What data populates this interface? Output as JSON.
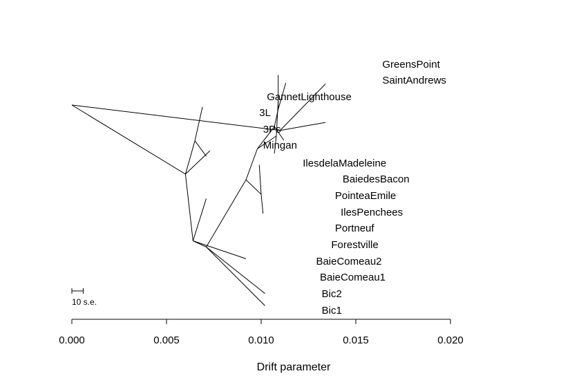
{
  "chart_data": {
    "type": "tree",
    "xlabel": "Drift parameter",
    "xlim": [
      0,
      0.02
    ],
    "x_ticks": [
      0.0,
      0.005,
      0.01,
      0.015,
      0.02
    ],
    "x_tick_labels": [
      "0.000",
      "0.005",
      "0.010",
      "0.015",
      "0.020"
    ],
    "scale_bar": {
      "label": "10 s.e.",
      "length": 0.0006
    },
    "nodes": [
      {
        "id": "root",
        "x": 0.0,
        "y": 0.0
      },
      {
        "id": "n_gs_sa",
        "x": 0.011,
        "y": 0.054
      },
      {
        "id": "n_a",
        "x": 0.006,
        "y": 0.147
      },
      {
        "id": "n_b",
        "x": 0.0064,
        "y": 0.289
      },
      {
        "id": "n_3l3ps",
        "x": 0.0065,
        "y": 0.076
      },
      {
        "id": "n_c",
        "x": 0.0071,
        "y": 0.302
      },
      {
        "id": "n_d",
        "x": 0.0092,
        "y": 0.159
      },
      {
        "id": "n_e",
        "x": 0.0098,
        "y": 0.093
      },
      {
        "id": "n_f",
        "x": 0.0107,
        "y": 0.046
      },
      {
        "id": "n_g",
        "x": 0.0109,
        "y": 0.009
      },
      {
        "id": "n_h",
        "x": 0.0108,
        "y": 0.066
      },
      {
        "id": "n_i",
        "x": 0.01,
        "y": 0.19
      }
    ],
    "edges": [
      [
        "root",
        "n_gs_sa"
      ],
      [
        "root",
        "n_a"
      ],
      [
        "n_a",
        "n_b"
      ],
      [
        "n_a",
        "n_3l3ps"
      ],
      [
        "n_b",
        "n_c"
      ],
      [
        "n_c",
        "n_d"
      ],
      [
        "n_d",
        "n_e"
      ],
      [
        "n_e",
        "n_f"
      ],
      [
        "n_f",
        "n_g"
      ],
      [
        "n_e",
        "n_h"
      ],
      [
        "n_d",
        "n_i"
      ]
    ],
    "leaves": [
      {
        "name": "GreensPoint",
        "parent": "n_gs_sa",
        "x": 0.0134,
        "y": -0.045,
        "label_x": 0.0164
      },
      {
        "name": "SaintAndrews",
        "parent": "n_gs_sa",
        "x": 0.0134,
        "y": 0.037,
        "label_x": 0.0164
      },
      {
        "name": "GannetLighthouse",
        "parent": "n_a",
        "x": 0.0073,
        "y": 0.097,
        "label_x": 0.0103
      },
      {
        "name": "3L",
        "parent": "n_3l3ps",
        "x": 0.0069,
        "y": 0.004,
        "label_x": 0.0099
      },
      {
        "name": "3Ps",
        "parent": "n_3l3ps",
        "x": 0.0071,
        "y": 0.109,
        "label_x": 0.0101
      },
      {
        "name": "Mingan",
        "parent": "n_b",
        "x": 0.0071,
        "y": 0.199,
        "label_x": 0.0101
      },
      {
        "name": "IlesdelaMadeleine",
        "parent": "n_b",
        "x": 0.0092,
        "y": 0.327,
        "label_x": 0.0122
      },
      {
        "name": "BaiedesBacon",
        "parent": "n_g",
        "x": 0.0113,
        "y": -0.047,
        "label_x": 0.0143
      },
      {
        "name": "PointeaEmile",
        "parent": "n_g",
        "x": 0.0109,
        "y": -0.064,
        "label_x": 0.0139
      },
      {
        "name": "IlesPenchees",
        "parent": "n_f",
        "x": 0.0112,
        "y": 0.075,
        "label_x": 0.0142
      },
      {
        "name": "Portneuf",
        "parent": "n_h",
        "x": 0.0109,
        "y": -0.008,
        "label_x": 0.0139
      },
      {
        "name": "Forestville",
        "parent": "n_h",
        "x": 0.0107,
        "y": 0.103,
        "label_x": 0.0137
      },
      {
        "name": "BaieComeau2",
        "parent": "n_i",
        "x": 0.0099,
        "y": 0.127,
        "label_x": 0.0129
      },
      {
        "name": "BaieComeau1",
        "parent": "n_i",
        "x": 0.0101,
        "y": 0.231,
        "label_x": 0.0131
      },
      {
        "name": "Bic2",
        "parent": "n_c",
        "x": 0.0102,
        "y": 0.401,
        "label_x": 0.0132
      },
      {
        "name": "Bic1",
        "parent": "n_c",
        "x": 0.0102,
        "y": 0.427,
        "label_x": 0.0132
      }
    ]
  }
}
